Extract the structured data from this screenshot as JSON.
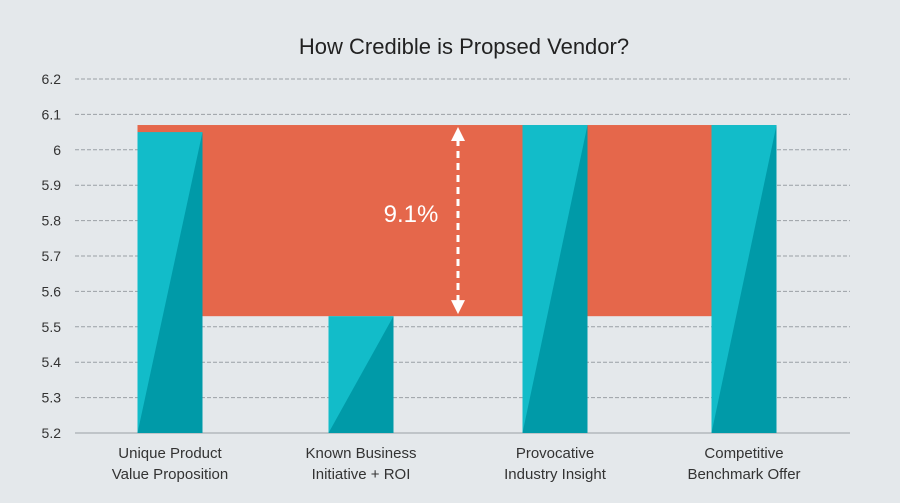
{
  "chart_data": {
    "type": "bar",
    "title": "How Credible is Propsed Vendor?",
    "categories": [
      [
        "Unique Product",
        "Value Proposition"
      ],
      [
        "Known Business",
        "Initiative + ROI"
      ],
      [
        "Provocative",
        "Industry Insight"
      ],
      [
        "Competitive",
        "Benchmark Offer"
      ]
    ],
    "values": [
      6.05,
      5.53,
      6.07,
      6.07
    ],
    "ylim": [
      5.2,
      6.2
    ],
    "yticks": [
      "5.2",
      "5.3",
      "5.4",
      "5.5",
      "5.6",
      "5.7",
      "5.8",
      "5.9",
      "6",
      "6.1",
      "6.2"
    ],
    "grid": true,
    "gap_band": {
      "low": 5.53,
      "high": 6.07
    },
    "annotation": "9.1%",
    "colors": {
      "background": "#e4e8eb",
      "bar_light": "#12bcc9",
      "bar_dark": "#009aa8",
      "band": "#e5674b",
      "grid": "#9aa0a6",
      "arrow": "#ffffff"
    }
  }
}
